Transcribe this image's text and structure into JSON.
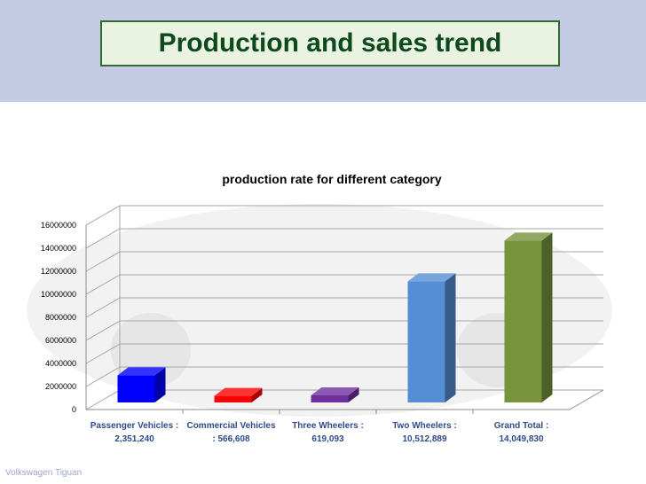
{
  "slide": {
    "title": "Production and sales trend",
    "footer": "Volkswagen Tiguan"
  },
  "colors": {
    "title_text": "#0c4a1e",
    "title_border": "#2f6b2f",
    "title_fill": "#eaf3e2",
    "band": "#c6cbe5"
  },
  "chart_data": {
    "type": "bar",
    "title": "production rate for different category",
    "xlabel": "",
    "ylabel": "",
    "ylim": [
      0,
      16000000
    ],
    "yticks": [
      "0",
      "2000000",
      "4000000",
      "6000000",
      "8000000",
      "10000000",
      "12000000",
      "14000000",
      "16000000"
    ],
    "grid": true,
    "categories": [
      [
        "Passenger Vehicles :",
        "2,351,240"
      ],
      [
        "Commercial Vehicles",
        ": 566,608"
      ],
      [
        "Three Wheelers :",
        "619,093"
      ],
      [
        "Two Wheelers :",
        "10,512,889"
      ],
      [
        "Grand Total :",
        "14,049,830"
      ]
    ],
    "values": [
      2351240,
      566608,
      619093,
      10512889,
      14049830
    ],
    "colors": [
      "#0000ff",
      "#ff0000",
      "#7030a0",
      "#558ed5",
      "#77933c"
    ]
  }
}
